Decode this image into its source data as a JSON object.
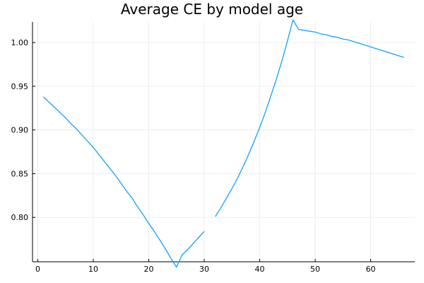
{
  "chart_data": {
    "type": "line",
    "title": "Average CE by model age",
    "xlabel": "",
    "ylabel": "",
    "xlim": [
      -0.95,
      67.95
    ],
    "ylim": [
      0.7492,
      1.0236
    ],
    "xticks": [
      0,
      10,
      20,
      30,
      40,
      50,
      60
    ],
    "yticks": [
      0.8,
      0.85,
      0.9,
      0.95,
      1.0
    ],
    "xtick_labels": [
      "0",
      "10",
      "20",
      "30",
      "40",
      "50",
      "60"
    ],
    "ytick_labels": [
      "0.80",
      "0.85",
      "0.90",
      "0.95",
      "1.00"
    ],
    "grid": true,
    "legend": "none",
    "series": [
      {
        "color": "#009af9",
        "segments": [
          {
            "x": [
              1,
              2,
              3,
              4,
              5,
              6,
              7,
              8,
              9,
              10,
              11,
              12,
              13,
              14,
              15,
              16,
              17,
              18,
              19,
              20,
              21,
              22,
              23,
              24,
              25,
              26,
              27,
              28,
              29,
              30
            ],
            "y": [
              0.938,
              0.932,
              0.926,
              0.92,
              0.914,
              0.907,
              0.901,
              0.894,
              0.887,
              0.88,
              0.872,
              0.864,
              0.856,
              0.848,
              0.839,
              0.83,
              0.822,
              0.812,
              0.803,
              0.793,
              0.784,
              0.774,
              0.764,
              0.753,
              0.743,
              0.757,
              0.763,
              0.77,
              0.777,
              0.784
            ]
          },
          {
            "x": [
              32,
              33,
              34,
              35,
              36,
              37,
              38,
              39,
              40,
              41,
              42,
              43,
              44,
              45,
              46,
              47,
              48,
              49,
              50,
              51,
              52,
              53,
              54,
              55,
              56,
              57,
              58,
              59,
              60,
              61,
              62,
              63,
              64,
              65,
              66
            ],
            "y": [
              0.801,
              0.811,
              0.822,
              0.833,
              0.845,
              0.858,
              0.872,
              0.887,
              0.903,
              0.92,
              0.939,
              0.958,
              0.979,
              1.002,
              1.026,
              1.015,
              1.014,
              1.013,
              1.012,
              1.01,
              1.009,
              1.007,
              1.006,
              1.004,
              1.003,
              1.001,
              0.999,
              0.997,
              0.995,
              0.993,
              0.991,
              0.989,
              0.987,
              0.985,
              0.983
            ]
          }
        ]
      }
    ]
  }
}
